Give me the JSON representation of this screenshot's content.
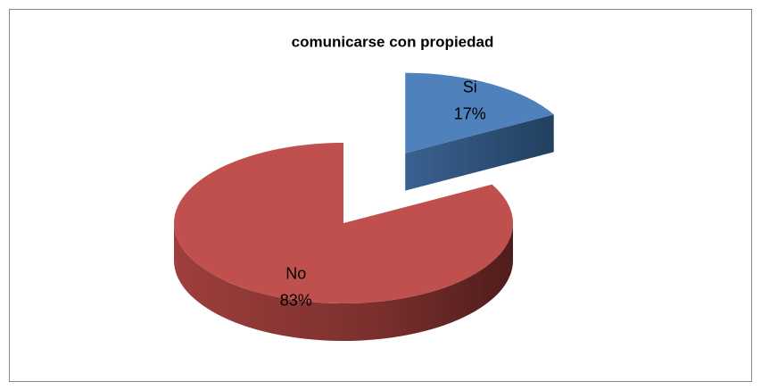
{
  "chart_data": {
    "type": "pie",
    "title": "comunicarse  con  propiedad",
    "categories": [
      "Si",
      "No"
    ],
    "values": [
      17,
      83
    ],
    "value_labels": [
      "17%",
      "83%"
    ],
    "colors": [
      "#4f81bd",
      "#c0504d"
    ]
  }
}
